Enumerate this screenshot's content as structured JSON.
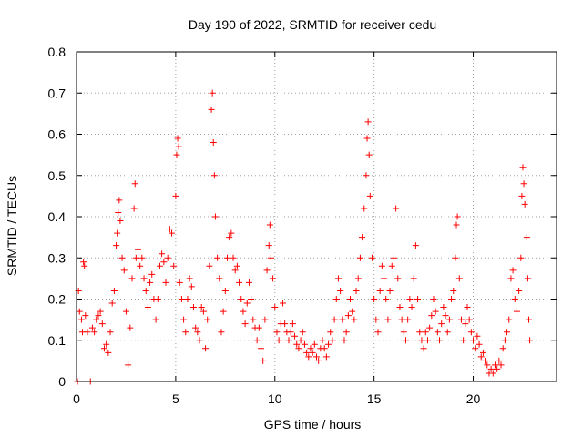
{
  "chart_data": {
    "type": "scatter",
    "title": "Day 190 of 2022, SRMTID for receiver cedu",
    "xlabel": "GPS time / hours",
    "ylabel": "SRMTID / TECUs",
    "xlim": [
      0,
      24.2
    ],
    "ylim": [
      0,
      0.8
    ],
    "xticks": [
      0,
      5,
      10,
      15,
      20
    ],
    "xtick_labels": [
      "0",
      "5",
      "10",
      "15",
      "20"
    ],
    "yticks": [
      0,
      0.1,
      0.2,
      0.3,
      0.4,
      0.5,
      0.6,
      0.7,
      0.8
    ],
    "ytick_labels": [
      "0",
      "0.1",
      "0.2",
      "0.3",
      "0.4",
      "0.5",
      "0.6",
      "0.7",
      "0.8"
    ],
    "grid": true,
    "marker": "+",
    "color": "#ff0000",
    "series": [
      {
        "name": "SRMTID",
        "points": [
          [
            0.05,
            0.0
          ],
          [
            0.1,
            0.22
          ],
          [
            0.15,
            0.17
          ],
          [
            0.25,
            0.15
          ],
          [
            0.3,
            0.12
          ],
          [
            0.35,
            0.29
          ],
          [
            0.4,
            0.28
          ],
          [
            0.45,
            0.16
          ],
          [
            0.55,
            0.12
          ],
          [
            0.7,
            0.0
          ],
          [
            0.8,
            0.13
          ],
          [
            0.9,
            0.12
          ],
          [
            1.0,
            0.15
          ],
          [
            1.1,
            0.16
          ],
          [
            1.2,
            0.17
          ],
          [
            1.3,
            0.14
          ],
          [
            1.4,
            0.08
          ],
          [
            1.5,
            0.09
          ],
          [
            1.6,
            0.07
          ],
          [
            1.7,
            0.12
          ],
          [
            1.8,
            0.19
          ],
          [
            1.9,
            0.22
          ],
          [
            2.0,
            0.33
          ],
          [
            2.05,
            0.36
          ],
          [
            2.1,
            0.41
          ],
          [
            2.15,
            0.44
          ],
          [
            2.2,
            0.39
          ],
          [
            2.3,
            0.3
          ],
          [
            2.4,
            0.27
          ],
          [
            2.5,
            0.17
          ],
          [
            2.6,
            0.04
          ],
          [
            2.7,
            0.13
          ],
          [
            2.8,
            0.25
          ],
          [
            2.9,
            0.42
          ],
          [
            2.95,
            0.48
          ],
          [
            3.0,
            0.3
          ],
          [
            3.1,
            0.32
          ],
          [
            3.2,
            0.28
          ],
          [
            3.3,
            0.3
          ],
          [
            3.4,
            0.25
          ],
          [
            3.5,
            0.22
          ],
          [
            3.6,
            0.18
          ],
          [
            3.7,
            0.24
          ],
          [
            3.8,
            0.26
          ],
          [
            3.9,
            0.2
          ],
          [
            4.0,
            0.15
          ],
          [
            4.1,
            0.2
          ],
          [
            4.2,
            0.28
          ],
          [
            4.3,
            0.31
          ],
          [
            4.4,
            0.29
          ],
          [
            4.5,
            0.24
          ],
          [
            4.6,
            0.3
          ],
          [
            4.7,
            0.37
          ],
          [
            4.8,
            0.36
          ],
          [
            4.9,
            0.28
          ],
          [
            5.0,
            0.45
          ],
          [
            5.05,
            0.55
          ],
          [
            5.1,
            0.59
          ],
          [
            5.15,
            0.57
          ],
          [
            5.2,
            0.24
          ],
          [
            5.3,
            0.2
          ],
          [
            5.4,
            0.15
          ],
          [
            5.5,
            0.12
          ],
          [
            5.6,
            0.2
          ],
          [
            5.7,
            0.25
          ],
          [
            5.8,
            0.23
          ],
          [
            5.9,
            0.18
          ],
          [
            6.0,
            0.13
          ],
          [
            6.1,
            0.12
          ],
          [
            6.2,
            0.1
          ],
          [
            6.3,
            0.18
          ],
          [
            6.4,
            0.17
          ],
          [
            6.5,
            0.08
          ],
          [
            6.6,
            0.15
          ],
          [
            6.7,
            0.28
          ],
          [
            6.8,
            0.66
          ],
          [
            6.85,
            0.7
          ],
          [
            6.9,
            0.58
          ],
          [
            6.95,
            0.5
          ],
          [
            7.0,
            0.4
          ],
          [
            7.1,
            0.3
          ],
          [
            7.2,
            0.25
          ],
          [
            7.3,
            0.12
          ],
          [
            7.4,
            0.17
          ],
          [
            7.5,
            0.22
          ],
          [
            7.6,
            0.3
          ],
          [
            7.7,
            0.35
          ],
          [
            7.8,
            0.36
          ],
          [
            7.9,
            0.3
          ],
          [
            8.0,
            0.27
          ],
          [
            8.1,
            0.28
          ],
          [
            8.2,
            0.24
          ],
          [
            8.3,
            0.2
          ],
          [
            8.4,
            0.17
          ],
          [
            8.5,
            0.14
          ],
          [
            8.6,
            0.19
          ],
          [
            8.7,
            0.24
          ],
          [
            8.8,
            0.2
          ],
          [
            8.9,
            0.15
          ],
          [
            9.0,
            0.13
          ],
          [
            9.1,
            0.1
          ],
          [
            9.2,
            0.13
          ],
          [
            9.3,
            0.08
          ],
          [
            9.4,
            0.05
          ],
          [
            9.5,
            0.15
          ],
          [
            9.6,
            0.27
          ],
          [
            9.7,
            0.33
          ],
          [
            9.75,
            0.38
          ],
          [
            9.8,
            0.3
          ],
          [
            9.9,
            0.25
          ],
          [
            10.0,
            0.18
          ],
          [
            10.1,
            0.12
          ],
          [
            10.2,
            0.1
          ],
          [
            10.3,
            0.14
          ],
          [
            10.4,
            0.19
          ],
          [
            10.5,
            0.14
          ],
          [
            10.6,
            0.12
          ],
          [
            10.7,
            0.1
          ],
          [
            10.8,
            0.12
          ],
          [
            10.9,
            0.14
          ],
          [
            11.0,
            0.11
          ],
          [
            11.1,
            0.09
          ],
          [
            11.2,
            0.08
          ],
          [
            11.3,
            0.1
          ],
          [
            11.4,
            0.12
          ],
          [
            11.5,
            0.09
          ],
          [
            11.6,
            0.07
          ],
          [
            11.7,
            0.06
          ],
          [
            11.8,
            0.08
          ],
          [
            11.9,
            0.07
          ],
          [
            12.0,
            0.09
          ],
          [
            12.1,
            0.06
          ],
          [
            12.2,
            0.05
          ],
          [
            12.3,
            0.08
          ],
          [
            12.4,
            0.1
          ],
          [
            12.5,
            0.08
          ],
          [
            12.6,
            0.06
          ],
          [
            12.7,
            0.09
          ],
          [
            12.8,
            0.12
          ],
          [
            12.9,
            0.1
          ],
          [
            13.0,
            0.15
          ],
          [
            13.1,
            0.2
          ],
          [
            13.2,
            0.25
          ],
          [
            13.3,
            0.22
          ],
          [
            13.4,
            0.15
          ],
          [
            13.5,
            0.1
          ],
          [
            13.6,
            0.12
          ],
          [
            13.7,
            0.16
          ],
          [
            13.8,
            0.2
          ],
          [
            13.9,
            0.17
          ],
          [
            14.0,
            0.15
          ],
          [
            14.1,
            0.22
          ],
          [
            14.2,
            0.25
          ],
          [
            14.3,
            0.3
          ],
          [
            14.4,
            0.35
          ],
          [
            14.5,
            0.42
          ],
          [
            14.6,
            0.5
          ],
          [
            14.65,
            0.59
          ],
          [
            14.7,
            0.63
          ],
          [
            14.75,
            0.55
          ],
          [
            14.8,
            0.45
          ],
          [
            14.9,
            0.3
          ],
          [
            15.0,
            0.2
          ],
          [
            15.1,
            0.15
          ],
          [
            15.2,
            0.12
          ],
          [
            15.3,
            0.22
          ],
          [
            15.4,
            0.28
          ],
          [
            15.5,
            0.25
          ],
          [
            15.6,
            0.2
          ],
          [
            15.7,
            0.15
          ],
          [
            15.8,
            0.22
          ],
          [
            15.9,
            0.28
          ],
          [
            16.0,
            0.3
          ],
          [
            16.1,
            0.42
          ],
          [
            16.2,
            0.25
          ],
          [
            16.3,
            0.18
          ],
          [
            16.4,
            0.15
          ],
          [
            16.5,
            0.12
          ],
          [
            16.6,
            0.1
          ],
          [
            16.7,
            0.15
          ],
          [
            16.8,
            0.2
          ],
          [
            16.9,
            0.18
          ],
          [
            17.0,
            0.25
          ],
          [
            17.1,
            0.33
          ],
          [
            17.2,
            0.2
          ],
          [
            17.3,
            0.12
          ],
          [
            17.4,
            0.1
          ],
          [
            17.5,
            0.08
          ],
          [
            17.6,
            0.12
          ],
          [
            17.7,
            0.1
          ],
          [
            17.8,
            0.13
          ],
          [
            17.9,
            0.16
          ],
          [
            18.0,
            0.2
          ],
          [
            18.1,
            0.17
          ],
          [
            18.2,
            0.12
          ],
          [
            18.3,
            0.1
          ],
          [
            18.4,
            0.14
          ],
          [
            18.5,
            0.18
          ],
          [
            18.6,
            0.16
          ],
          [
            18.7,
            0.12
          ],
          [
            18.8,
            0.15
          ],
          [
            18.9,
            0.2
          ],
          [
            19.0,
            0.22
          ],
          [
            19.1,
            0.3
          ],
          [
            19.15,
            0.38
          ],
          [
            19.2,
            0.4
          ],
          [
            19.3,
            0.25
          ],
          [
            19.4,
            0.15
          ],
          [
            19.5,
            0.1
          ],
          [
            19.6,
            0.14
          ],
          [
            19.7,
            0.18
          ],
          [
            19.8,
            0.15
          ],
          [
            19.9,
            0.12
          ],
          [
            20.0,
            0.1
          ],
          [
            20.1,
            0.08
          ],
          [
            20.2,
            0.11
          ],
          [
            20.3,
            0.09
          ],
          [
            20.4,
            0.06
          ],
          [
            20.5,
            0.07
          ],
          [
            20.6,
            0.05
          ],
          [
            20.7,
            0.04
          ],
          [
            20.8,
            0.02
          ],
          [
            20.9,
            0.03
          ],
          [
            21.0,
            0.02
          ],
          [
            21.1,
            0.04
          ],
          [
            21.2,
            0.03
          ],
          [
            21.3,
            0.05
          ],
          [
            21.4,
            0.04
          ],
          [
            21.5,
            0.08
          ],
          [
            21.6,
            0.1
          ],
          [
            21.7,
            0.12
          ],
          [
            21.8,
            0.15
          ],
          [
            21.9,
            0.25
          ],
          [
            22.0,
            0.27
          ],
          [
            22.1,
            0.2
          ],
          [
            22.2,
            0.17
          ],
          [
            22.3,
            0.22
          ],
          [
            22.4,
            0.3
          ],
          [
            22.45,
            0.45
          ],
          [
            22.5,
            0.52
          ],
          [
            22.55,
            0.48
          ],
          [
            22.6,
            0.43
          ],
          [
            22.7,
            0.35
          ],
          [
            22.75,
            0.25
          ],
          [
            22.8,
            0.15
          ],
          [
            22.85,
            0.1
          ]
        ]
      }
    ]
  }
}
